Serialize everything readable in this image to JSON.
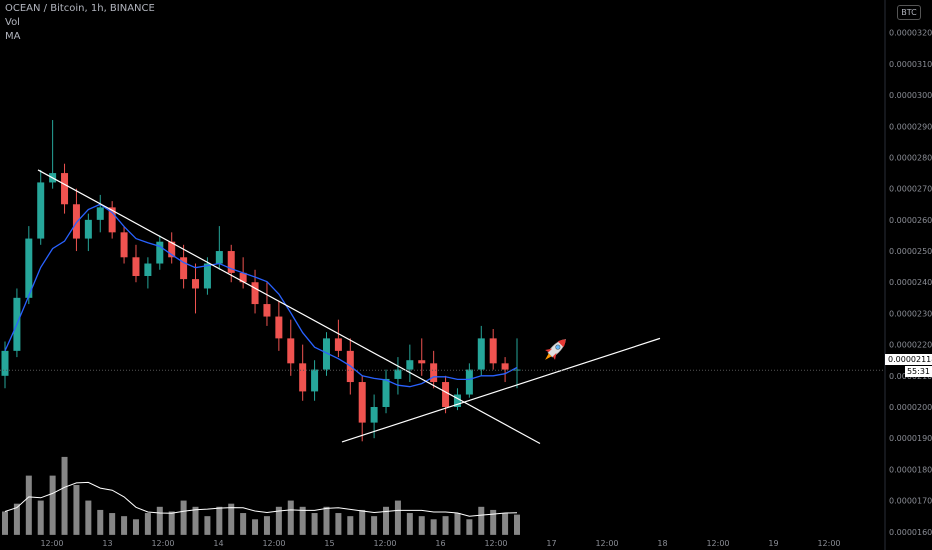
{
  "header": {
    "symbol_line": "OCEAN / Bitcoin, 1h, BINANCE",
    "vol_label": "Vol",
    "ma_label": "MA"
  },
  "currency_badge": "BTC",
  "last_price_label": "0.00002118",
  "countdown_label": "55:31",
  "colors": {
    "background": "#000000",
    "up_candle": "#26a69a",
    "down_candle": "#ef5350",
    "ma_line": "#2962ff",
    "volume_bar": "#9e9e9e",
    "volume_ma": "#ffffff",
    "trendline": "#ffffff"
  },
  "icons": [
    "rocket-icon"
  ],
  "chart_data": {
    "type": "candlestick",
    "y_ticks": [
      "0.00003200",
      "0.00003100",
      "0.00003000",
      "0.00002900",
      "0.00002800",
      "0.00002700",
      "0.00002600",
      "0.00002500",
      "0.00002400",
      "0.00002300",
      "0.00002200",
      "0.00002100",
      "0.00002000",
      "0.00001900",
      "0.00001800",
      "0.00001700",
      "0.00001600"
    ],
    "x_ticks": [
      "12:00",
      "13",
      "12:00",
      "14",
      "12:00",
      "15",
      "12:00",
      "16",
      "12:00",
      "17",
      "12:00",
      "18",
      "12:00",
      "19",
      "12:00"
    ],
    "ylim": [
      1.58e-05,
      3.26e-05
    ],
    "last_price": 2.118e-05,
    "candles": [
      [
        2.1e-05,
        2.21e-05,
        2.06e-05,
        2.18e-05
      ],
      [
        2.18e-05,
        2.38e-05,
        2.16e-05,
        2.35e-05
      ],
      [
        2.35e-05,
        2.58e-05,
        2.33e-05,
        2.54e-05
      ],
      [
        2.54e-05,
        2.76e-05,
        2.52e-05,
        2.72e-05
      ],
      [
        2.72e-05,
        2.92e-05,
        2.7e-05,
        2.75e-05
      ],
      [
        2.75e-05,
        2.78e-05,
        2.62e-05,
        2.65e-05
      ],
      [
        2.65e-05,
        2.7e-05,
        2.5e-05,
        2.54e-05
      ],
      [
        2.54e-05,
        2.62e-05,
        2.5e-05,
        2.6e-05
      ],
      [
        2.6e-05,
        2.68e-05,
        2.56e-05,
        2.64e-05
      ],
      [
        2.64e-05,
        2.66e-05,
        2.54e-05,
        2.56e-05
      ],
      [
        2.56e-05,
        2.58e-05,
        2.46e-05,
        2.48e-05
      ],
      [
        2.48e-05,
        2.52e-05,
        2.4e-05,
        2.42e-05
      ],
      [
        2.42e-05,
        2.48e-05,
        2.38e-05,
        2.46e-05
      ],
      [
        2.46e-05,
        2.55e-05,
        2.44e-05,
        2.53e-05
      ],
      [
        2.53e-05,
        2.56e-05,
        2.46e-05,
        2.48e-05
      ],
      [
        2.48e-05,
        2.52e-05,
        2.38e-05,
        2.41e-05
      ],
      [
        2.41e-05,
        2.46e-05,
        2.3e-05,
        2.38e-05
      ],
      [
        2.38e-05,
        2.48e-05,
        2.36e-05,
        2.46e-05
      ],
      [
        2.46e-05,
        2.58e-05,
        2.44e-05,
        2.5e-05
      ],
      [
        2.5e-05,
        2.52e-05,
        2.4e-05,
        2.43e-05
      ],
      [
        2.43e-05,
        2.48e-05,
        2.38e-05,
        2.4e-05
      ],
      [
        2.4e-05,
        2.44e-05,
        2.3e-05,
        2.33e-05
      ],
      [
        2.33e-05,
        2.4e-05,
        2.26e-05,
        2.29e-05
      ],
      [
        2.29e-05,
        2.34e-05,
        2.18e-05,
        2.22e-05
      ],
      [
        2.22e-05,
        2.28e-05,
        2.1e-05,
        2.14e-05
      ],
      [
        2.14e-05,
        2.2e-05,
        2.02e-05,
        2.05e-05
      ],
      [
        2.05e-05,
        2.15e-05,
        2.02e-05,
        2.12e-05
      ],
      [
        2.12e-05,
        2.24e-05,
        2.1e-05,
        2.22e-05
      ],
      [
        2.22e-05,
        2.28e-05,
        2.16e-05,
        2.18e-05
      ],
      [
        2.18e-05,
        2.22e-05,
        2.04e-05,
        2.08e-05
      ],
      [
        2.08e-05,
        2.1e-05,
        1.89e-05,
        1.95e-05
      ],
      [
        1.95e-05,
        2.04e-05,
        1.9e-05,
        2e-05
      ],
      [
        2e-05,
        2.12e-05,
        1.98e-05,
        2.09e-05
      ],
      [
        2.09e-05,
        2.16e-05,
        2.04e-05,
        2.12e-05
      ],
      [
        2.12e-05,
        2.2e-05,
        2.08e-05,
        2.15e-05
      ],
      [
        2.15e-05,
        2.22e-05,
        2.1e-05,
        2.14e-05
      ],
      [
        2.14e-05,
        2.18e-05,
        2.06e-05,
        2.08e-05
      ],
      [
        2.08e-05,
        2.1e-05,
        1.98e-05,
        2e-05
      ],
      [
        2e-05,
        2.06e-05,
        1.99e-05,
        2.04e-05
      ],
      [
        2.04e-05,
        2.14e-05,
        2.03e-05,
        2.12e-05
      ],
      [
        2.12e-05,
        2.26e-05,
        2.1e-05,
        2.22e-05
      ],
      [
        2.22e-05,
        2.25e-05,
        2.12e-05,
        2.14e-05
      ],
      [
        2.14e-05,
        2.16e-05,
        2.08e-05,
        2.12e-05
      ],
      [
        2.12e-05,
        2.22e-05,
        2.06e-05,
        2.12e-05
      ]
    ],
    "volumes": [
      1.665e-05,
      1.69e-05,
      1.78e-05,
      1.7e-05,
      1.78e-05,
      1.84e-05,
      1.75e-05,
      1.7e-05,
      1.67e-05,
      1.66e-05,
      1.65e-05,
      1.64e-05,
      1.66e-05,
      1.68e-05,
      1.665e-05,
      1.7e-05,
      1.68e-05,
      1.65e-05,
      1.68e-05,
      1.69e-05,
      1.66e-05,
      1.64e-05,
      1.65e-05,
      1.68e-05,
      1.7e-05,
      1.68e-05,
      1.66e-05,
      1.68e-05,
      1.66e-05,
      1.65e-05,
      1.67e-05,
      1.65e-05,
      1.68e-05,
      1.7e-05,
      1.66e-05,
      1.65e-05,
      1.64e-05,
      1.65e-05,
      1.66e-05,
      1.64e-05,
      1.68e-05,
      1.67e-05,
      1.66e-05,
      1.655e-05
    ]
  }
}
